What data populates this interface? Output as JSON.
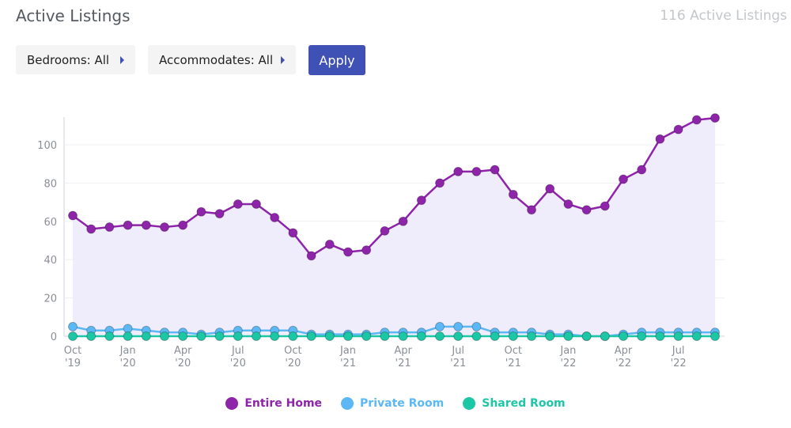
{
  "header": {
    "title": "Active Listings",
    "count_text": "116 Active Listings"
  },
  "filters": {
    "bedrooms_label": "Bedrooms: All",
    "accommodates_label": "Accommodates: All",
    "apply_label": "Apply"
  },
  "colors": {
    "entire_home": "#8e24aa",
    "private_room": "#5bb8f5",
    "shared_room": "#1cc7a5",
    "area_fill": "#efecfb",
    "button": "#3f51b5"
  },
  "legend": [
    {
      "label": "Entire Home",
      "color": "#8e24aa"
    },
    {
      "label": "Private Room",
      "color": "#5bb8f5"
    },
    {
      "label": "Shared Room",
      "color": "#1cc7a5"
    }
  ],
  "chart_data": {
    "type": "line",
    "title": "",
    "xlabel": "",
    "ylabel": "",
    "ylim": [
      0,
      115
    ],
    "yticks": [
      0,
      20,
      40,
      60,
      80,
      100
    ],
    "grid": true,
    "legend_position": "bottom",
    "x": [
      "2019-10",
      "2019-11",
      "2019-12",
      "2020-01",
      "2020-02",
      "2020-03",
      "2020-04",
      "2020-05",
      "2020-06",
      "2020-07",
      "2020-08",
      "2020-09",
      "2020-10",
      "2020-11",
      "2020-12",
      "2021-01",
      "2021-02",
      "2021-03",
      "2021-04",
      "2021-05",
      "2021-06",
      "2021-07",
      "2021-08",
      "2021-09",
      "2021-10",
      "2021-11",
      "2021-12",
      "2022-01",
      "2022-02",
      "2022-03",
      "2022-04",
      "2022-05",
      "2022-06",
      "2022-07",
      "2022-08",
      "2022-09"
    ],
    "xtick_labels": [
      {
        "x": "2019-10",
        "month": "Oct",
        "year": "'19"
      },
      {
        "x": "2020-01",
        "month": "Jan",
        "year": "'20"
      },
      {
        "x": "2020-04",
        "month": "Apr",
        "year": "'20"
      },
      {
        "x": "2020-07",
        "month": "Jul",
        "year": "'20"
      },
      {
        "x": "2020-10",
        "month": "Oct",
        "year": "'20"
      },
      {
        "x": "2021-01",
        "month": "Jan",
        "year": "'21"
      },
      {
        "x": "2021-04",
        "month": "Apr",
        "year": "'21"
      },
      {
        "x": "2021-07",
        "month": "Jul",
        "year": "'21"
      },
      {
        "x": "2021-10",
        "month": "Oct",
        "year": "'21"
      },
      {
        "x": "2022-01",
        "month": "Jan",
        "year": "'22"
      },
      {
        "x": "2022-04",
        "month": "Apr",
        "year": "'22"
      },
      {
        "x": "2022-07",
        "month": "Jul",
        "year": "'22"
      }
    ],
    "series": [
      {
        "name": "Entire Home",
        "color": "#8e24aa",
        "filled": true,
        "values": [
          63,
          56,
          57,
          58,
          58,
          57,
          58,
          65,
          64,
          69,
          69,
          62,
          54,
          42,
          48,
          44,
          45,
          55,
          60,
          71,
          80,
          86,
          86,
          87,
          74,
          66,
          77,
          69,
          66,
          68,
          82,
          87,
          103,
          108,
          113,
          114
        ]
      },
      {
        "name": "Private Room",
        "color": "#5bb8f5",
        "filled": false,
        "values": [
          5,
          3,
          3,
          4,
          3,
          2,
          2,
          1,
          2,
          3,
          3,
          3,
          3,
          1,
          1,
          1,
          1,
          2,
          2,
          2,
          5,
          5,
          5,
          2,
          2,
          2,
          1,
          1,
          0,
          0,
          1,
          2,
          2,
          2,
          2,
          2
        ]
      },
      {
        "name": "Shared Room",
        "color": "#1cc7a5",
        "filled": false,
        "values": [
          0,
          0,
          0,
          0,
          0,
          0,
          0,
          0,
          0,
          0,
          0,
          0,
          0,
          0,
          0,
          0,
          0,
          0,
          0,
          0,
          0,
          0,
          0,
          0,
          0,
          0,
          0,
          0,
          0,
          0,
          0,
          0,
          0,
          0,
          0,
          0
        ]
      }
    ]
  }
}
